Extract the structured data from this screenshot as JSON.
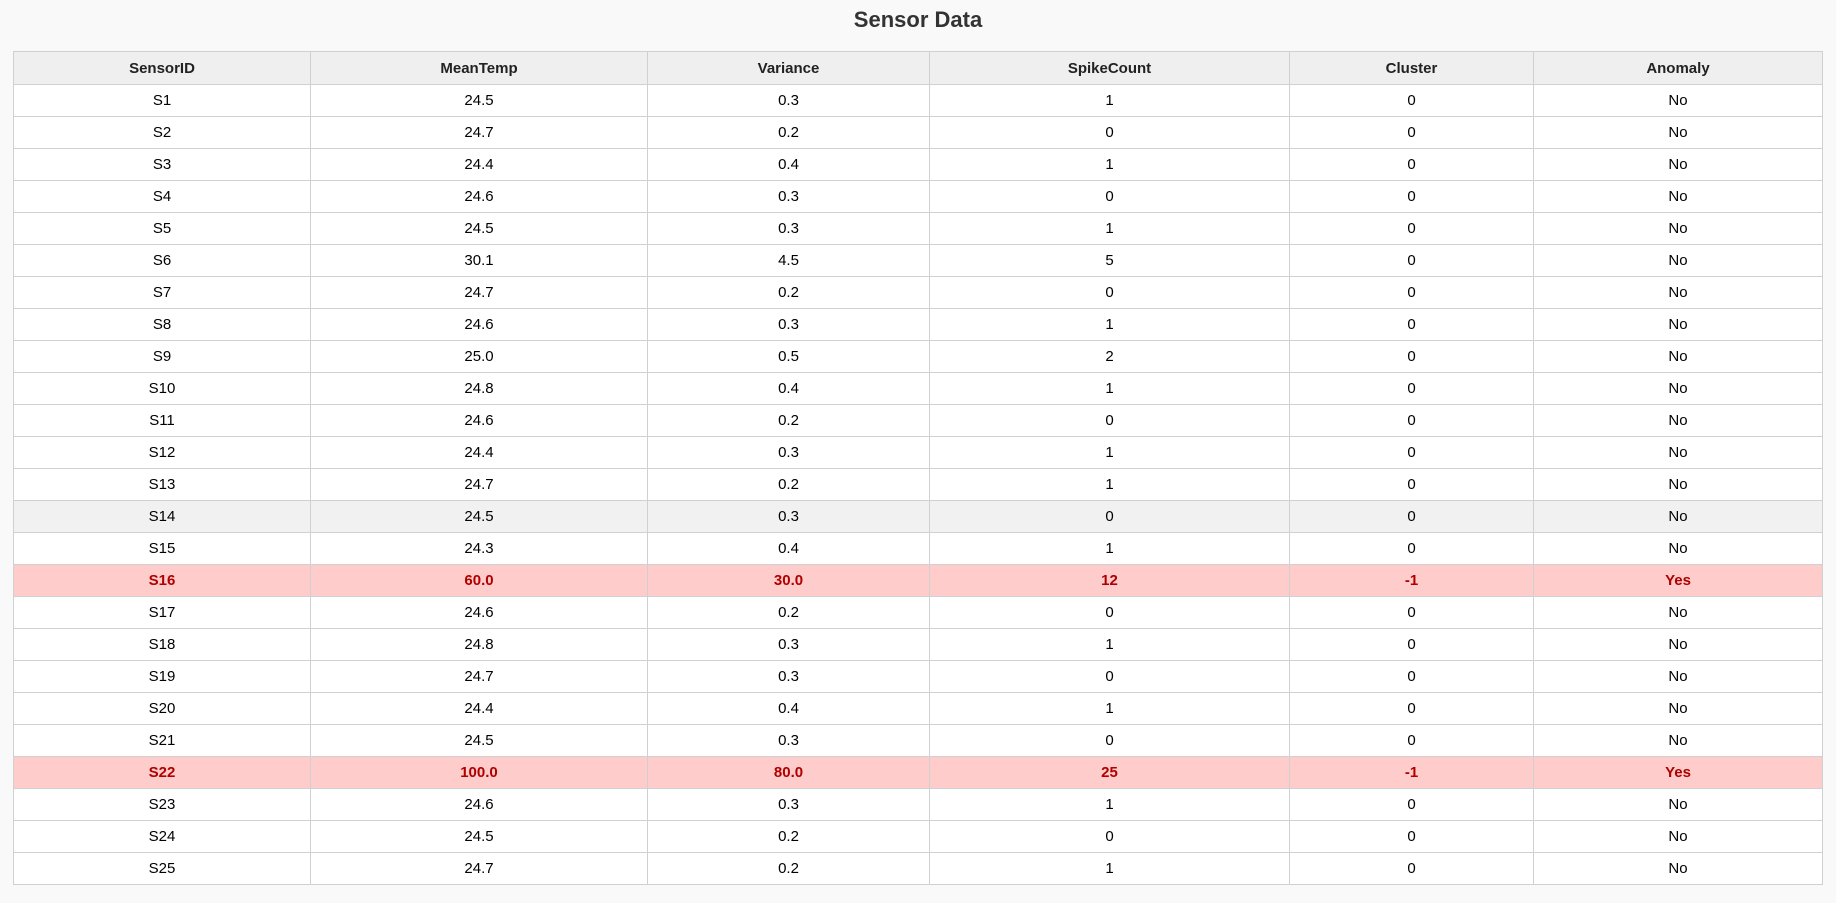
{
  "title": "Sensor Data",
  "colors": {
    "anomaly_bg": "#ffcccc",
    "anomaly_text": "#b00000",
    "header_bg": "#efefef"
  },
  "table": {
    "columns": [
      "SensorID",
      "MeanTemp",
      "Variance",
      "SpikeCount",
      "Cluster",
      "Anomaly"
    ],
    "rows": [
      [
        "S1",
        "24.5",
        "0.3",
        "1",
        "0",
        "No"
      ],
      [
        "S2",
        "24.7",
        "0.2",
        "0",
        "0",
        "No"
      ],
      [
        "S3",
        "24.4",
        "0.4",
        "1",
        "0",
        "No"
      ],
      [
        "S4",
        "24.6",
        "0.3",
        "0",
        "0",
        "No"
      ],
      [
        "S5",
        "24.5",
        "0.3",
        "1",
        "0",
        "No"
      ],
      [
        "S6",
        "30.1",
        "4.5",
        "5",
        "0",
        "No"
      ],
      [
        "S7",
        "24.7",
        "0.2",
        "0",
        "0",
        "No"
      ],
      [
        "S8",
        "24.6",
        "0.3",
        "1",
        "0",
        "No"
      ],
      [
        "S9",
        "25.0",
        "0.5",
        "2",
        "0",
        "No"
      ],
      [
        "S10",
        "24.8",
        "0.4",
        "1",
        "0",
        "No"
      ],
      [
        "S11",
        "24.6",
        "0.2",
        "0",
        "0",
        "No"
      ],
      [
        "S12",
        "24.4",
        "0.3",
        "1",
        "0",
        "No"
      ],
      [
        "S13",
        "24.7",
        "0.2",
        "1",
        "0",
        "No"
      ],
      [
        "S14",
        "24.5",
        "0.3",
        "0",
        "0",
        "No"
      ],
      [
        "S15",
        "24.3",
        "0.4",
        "1",
        "0",
        "No"
      ],
      [
        "S16",
        "60.0",
        "30.0",
        "12",
        "-1",
        "Yes"
      ],
      [
        "S17",
        "24.6",
        "0.2",
        "0",
        "0",
        "No"
      ],
      [
        "S18",
        "24.8",
        "0.3",
        "1",
        "0",
        "No"
      ],
      [
        "S19",
        "24.7",
        "0.3",
        "0",
        "0",
        "No"
      ],
      [
        "S20",
        "24.4",
        "0.4",
        "1",
        "0",
        "No"
      ],
      [
        "S21",
        "24.5",
        "0.3",
        "0",
        "0",
        "No"
      ],
      [
        "S22",
        "100.0",
        "80.0",
        "25",
        "-1",
        "Yes"
      ],
      [
        "S23",
        "24.6",
        "0.3",
        "1",
        "0",
        "No"
      ],
      [
        "S24",
        "24.5",
        "0.2",
        "0",
        "0",
        "No"
      ],
      [
        "S25",
        "24.7",
        "0.2",
        "1",
        "0",
        "No"
      ]
    ],
    "hovered_row": "S14"
  }
}
